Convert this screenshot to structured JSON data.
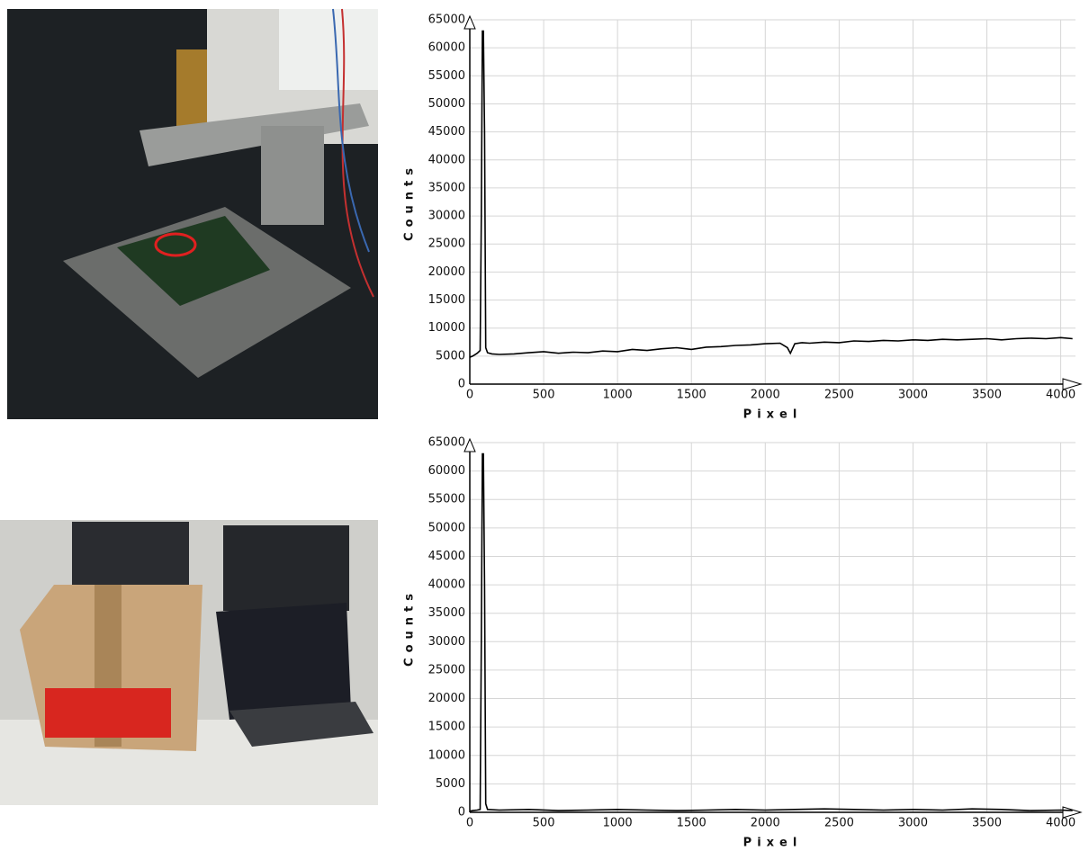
{
  "chart_data": [
    {
      "type": "line",
      "x_label": "Pixel",
      "y_label": "Counts",
      "xlim": [
        0,
        4100
      ],
      "ylim": [
        0,
        65000
      ],
      "xticks": [
        0,
        500,
        1000,
        1500,
        2000,
        2500,
        3000,
        3500,
        4000
      ],
      "yticks": [
        0,
        5000,
        10000,
        15000,
        20000,
        25000,
        30000,
        35000,
        40000,
        45000,
        50000,
        55000,
        60000,
        65000
      ],
      "grid": true,
      "series": [
        {
          "color": "#000000",
          "x": [
            0,
            20,
            50,
            70,
            78,
            85,
            92,
            100,
            108,
            120,
            150,
            200,
            300,
            400,
            500,
            600,
            700,
            800,
            900,
            1000,
            1100,
            1200,
            1300,
            1400,
            1500,
            1600,
            1700,
            1800,
            1900,
            2000,
            2100,
            2150,
            2170,
            2200,
            2250,
            2300,
            2400,
            2500,
            2600,
            2700,
            2800,
            2900,
            3000,
            3100,
            3200,
            3300,
            3400,
            3500,
            3600,
            3700,
            3800,
            3900,
            4000,
            4080
          ],
          "values": [
            4800,
            5000,
            5500,
            6000,
            30000,
            63000,
            63000,
            45000,
            6500,
            5600,
            5400,
            5300,
            5400,
            5600,
            5800,
            5500,
            5700,
            5600,
            5900,
            5800,
            6200,
            6000,
            6300,
            6500,
            6200,
            6600,
            6700,
            6900,
            7000,
            7200,
            7300,
            6500,
            5500,
            7200,
            7400,
            7300,
            7500,
            7400,
            7700,
            7600,
            7800,
            7700,
            7900,
            7800,
            8000,
            7900,
            8000,
            8100,
            7900,
            8100,
            8200,
            8100,
            8300,
            8100
          ]
        }
      ]
    },
    {
      "type": "line",
      "x_label": "Pixel",
      "y_label": "Counts",
      "xlim": [
        0,
        4100
      ],
      "ylim": [
        0,
        65000
      ],
      "xticks": [
        0,
        500,
        1000,
        1500,
        2000,
        2500,
        3000,
        3500,
        4000
      ],
      "yticks": [
        0,
        5000,
        10000,
        15000,
        20000,
        25000,
        30000,
        35000,
        40000,
        45000,
        50000,
        55000,
        60000,
        65000
      ],
      "grid": true,
      "series": [
        {
          "color": "#000000",
          "x": [
            0,
            20,
            50,
            70,
            78,
            85,
            92,
            100,
            108,
            120,
            200,
            400,
            600,
            800,
            1000,
            1200,
            1400,
            1600,
            1800,
            2000,
            2200,
            2400,
            2600,
            2800,
            3000,
            3200,
            3400,
            3600,
            3800,
            4000,
            4080
          ],
          "values": [
            200,
            300,
            400,
            500,
            30000,
            63000,
            63000,
            40000,
            1500,
            500,
            400,
            500,
            300,
            400,
            500,
            400,
            300,
            400,
            500,
            400,
            500,
            600,
            500,
            400,
            500,
            400,
            600,
            500,
            300,
            400,
            300
          ]
        }
      ]
    }
  ]
}
